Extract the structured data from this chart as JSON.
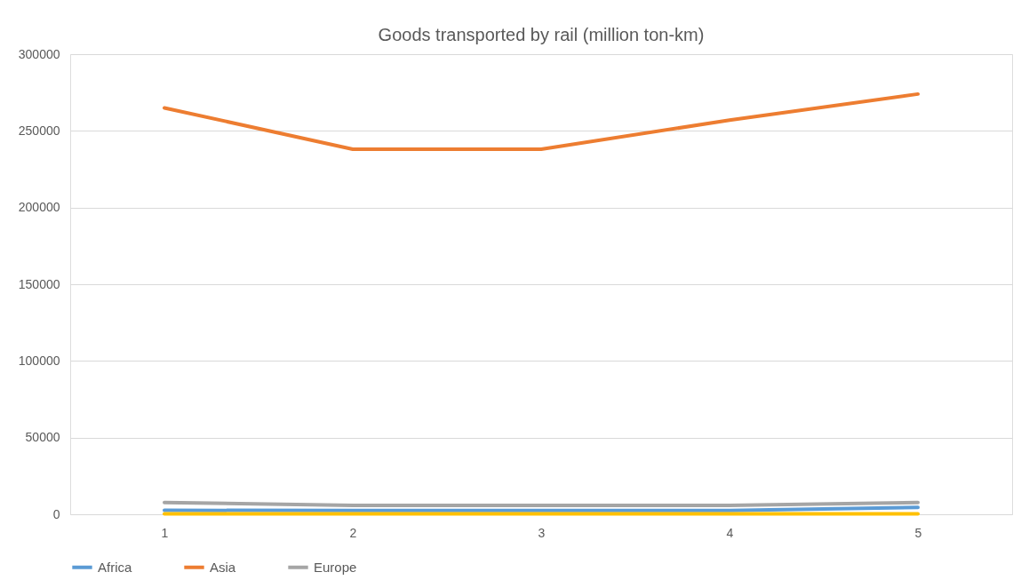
{
  "chart_data": {
    "type": "line",
    "title": "Goods transported by rail (million ton-km)",
    "categories": [
      "1",
      "2",
      "3",
      "4",
      "5"
    ],
    "series": [
      {
        "name": "Africa",
        "color": "#5b9bd5",
        "values": [
          2600,
          2400,
          2400,
          2400,
          4500
        ]
      },
      {
        "name": "Asia",
        "color": "#ed7d31",
        "values": [
          265000,
          238000,
          238000,
          257000,
          274000
        ]
      },
      {
        "name": "Europe",
        "color": "#a5a5a5",
        "values": [
          7700,
          5800,
          5800,
          5800,
          7700
        ]
      },
      {
        "color": "#ffc000",
        "values": [
          300,
          300,
          300,
          300,
          300
        ]
      }
    ],
    "ylim": [
      0,
      300000
    ],
    "yticks": [
      0,
      50000,
      100000,
      150000,
      200000,
      250000,
      300000
    ],
    "grid": "y",
    "legend": "bottom",
    "marker": "none",
    "line_style": "solid"
  }
}
